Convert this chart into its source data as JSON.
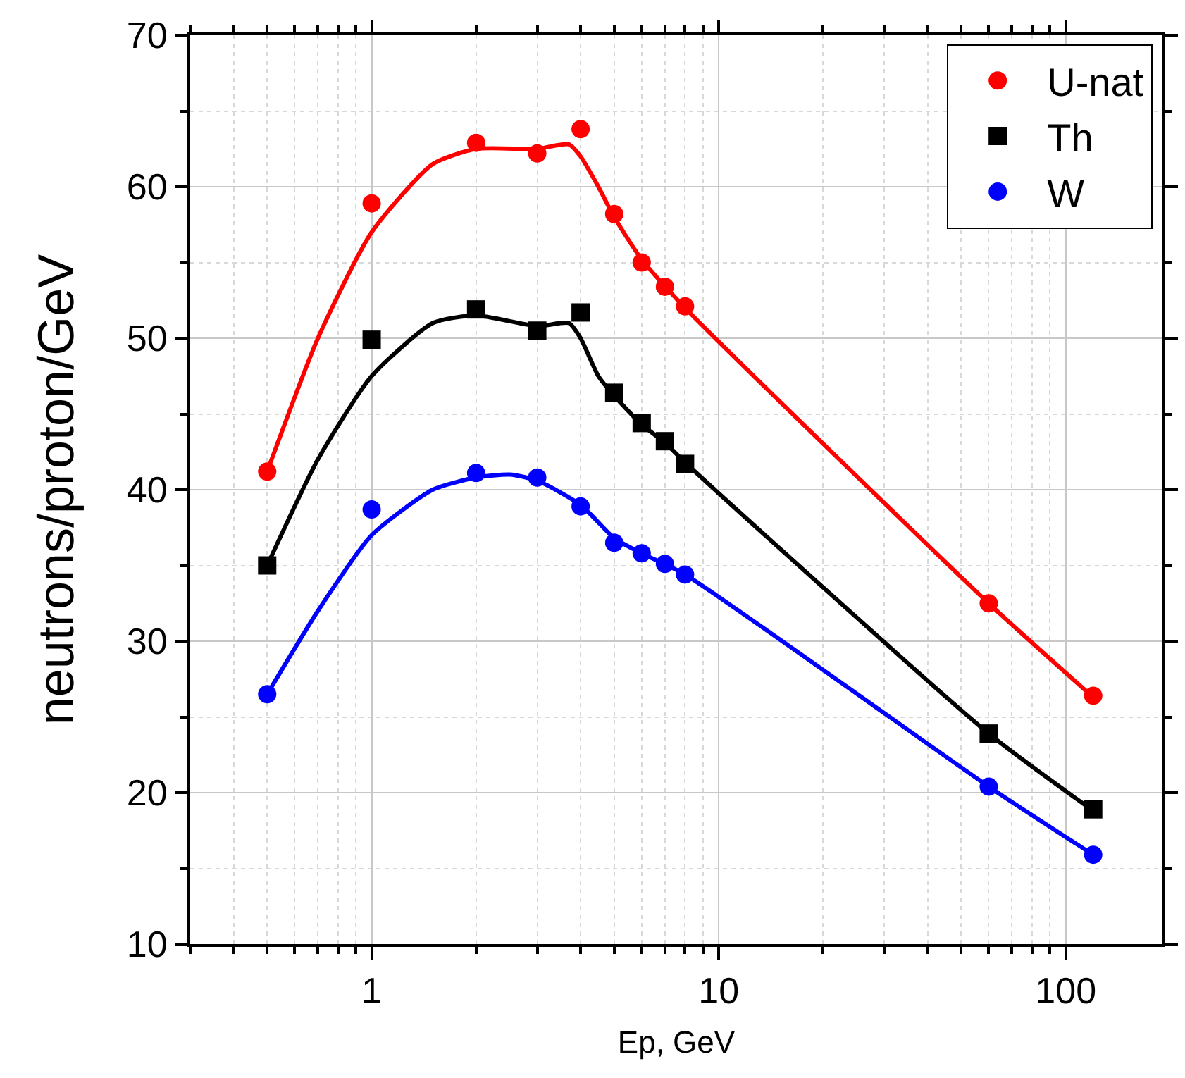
{
  "chart_data": {
    "type": "scatter",
    "xlabel": "Ep, GeV",
    "ylabel": "neutrons/proton/GeV",
    "log": "x",
    "grid": true,
    "legend": "top right",
    "xlim": [
      0.3,
      190
    ],
    "ylim": [
      10,
      70
    ],
    "xticks": [
      {
        "value": 0.3,
        "label": null
      },
      {
        "value": 0.4,
        "label": null
      },
      {
        "value": 0.5,
        "label": null
      },
      {
        "value": 0.6,
        "label": null
      },
      {
        "value": 0.7,
        "label": null
      },
      {
        "value": 0.8,
        "label": null
      },
      {
        "value": 0.9,
        "label": null
      },
      1,
      {
        "value": 2,
        "label": null
      },
      {
        "value": 3,
        "label": null
      },
      {
        "value": 4,
        "label": null
      },
      {
        "value": 5,
        "label": null
      },
      {
        "value": 6,
        "label": null
      },
      {
        "value": 7,
        "label": null
      },
      {
        "value": 8,
        "label": null
      },
      {
        "value": 9,
        "label": null
      },
      10,
      {
        "value": 20,
        "label": null
      },
      {
        "value": 30,
        "label": null
      },
      {
        "value": 40,
        "label": null
      },
      {
        "value": 50,
        "label": null
      },
      {
        "value": 60,
        "label": null
      },
      {
        "value": 70,
        "label": null
      },
      {
        "value": 80,
        "label": null
      },
      {
        "value": 90,
        "label": null
      },
      100
    ],
    "yticks": [
      10,
      {
        "value": 15,
        "label": null
      },
      20,
      {
        "value": 25,
        "label": null
      },
      30,
      {
        "value": 35,
        "label": null
      },
      40,
      {
        "value": 45,
        "label": null
      },
      50,
      {
        "value": 55,
        "label": null
      },
      60,
      {
        "value": 65,
        "label": null
      },
      70
    ],
    "x": [
      0.5,
      1,
      2,
      3,
      4,
      5,
      6,
      7,
      8,
      60,
      120
    ],
    "series": [
      {
        "name": "U-nat",
        "marker": "circle",
        "color": "#ff0000",
        "values": [
          41.2,
          58.9,
          62.9,
          62.2,
          63.8,
          58.2,
          55.0,
          53.4,
          52.1,
          32.5,
          26.4
        ]
      },
      {
        "name": "Th",
        "marker": "square",
        "color": "#000000",
        "values": [
          35.0,
          49.9,
          51.9,
          50.5,
          51.7,
          46.4,
          44.4,
          43.2,
          41.7,
          23.9,
          18.9
        ]
      },
      {
        "name": "W",
        "marker": "circle",
        "color": "#0000ff",
        "values": [
          26.5,
          38.7,
          41.1,
          40.8,
          38.9,
          36.5,
          35.8,
          35.1,
          34.4,
          20.4,
          15.9
        ]
      },
      {
        "type": "line",
        "marker": "none",
        "color": "#ff0000",
        "x": [
          0.5,
          0.7,
          1,
          1.5,
          2,
          3,
          3.7,
          4,
          4.5,
          5,
          6,
          8,
          60,
          120
        ],
        "values": [
          41.2,
          50,
          57,
          61.5,
          62.5,
          62.5,
          62.8,
          62,
          60,
          58,
          55.2,
          52,
          32.5,
          26.3
        ]
      },
      {
        "type": "line",
        "marker": "none",
        "color": "#000000",
        "x": [
          0.5,
          0.7,
          1,
          1.5,
          2,
          3,
          3.7,
          4,
          4.5,
          5,
          6,
          7,
          8,
          60,
          120
        ],
        "values": [
          35,
          42,
          47.5,
          51,
          51.5,
          50.8,
          51,
          50,
          47.5,
          46.2,
          44.3,
          43.1,
          41.8,
          23.9,
          18.8
        ]
      },
      {
        "type": "line",
        "marker": "none",
        "color": "#0000ff",
        "x": [
          0.5,
          0.7,
          1,
          1.5,
          2,
          2.5,
          3,
          4,
          5,
          6,
          8,
          60,
          120
        ],
        "values": [
          26.5,
          32,
          37,
          40,
          40.8,
          41,
          40.6,
          39,
          36.8,
          35.8,
          34.4,
          20.4,
          15.9
        ]
      }
    ]
  }
}
